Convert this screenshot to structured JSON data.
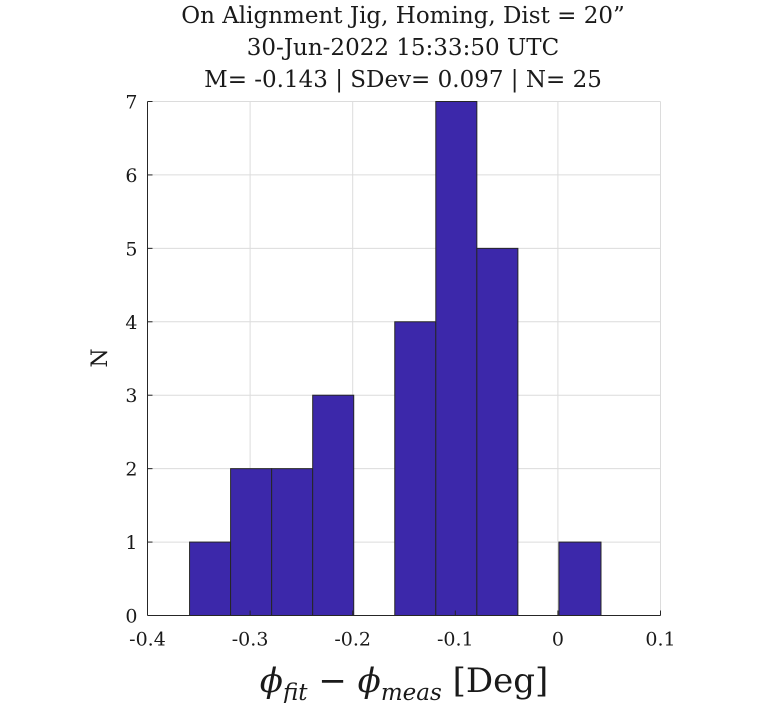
{
  "chart_data": {
    "type": "bar",
    "title_lines": [
      "On Alignment Jig, Homing, Dist = 20”",
      "30-Jun-2022 15:33:50 UTC",
      "M= -0.143 | SDev= 0.097 | N= 25"
    ],
    "xlabel": {
      "phi": "ϕ",
      "fit": "fit",
      "minus": " − ",
      "meas": "meas",
      "unit": " [Deg]"
    },
    "ylabel": "N",
    "xlim": [
      -0.4,
      0.1
    ],
    "ylim": [
      0,
      7
    ],
    "xticks": [
      "-0.4",
      "-0.3",
      "-0.2",
      "-0.1",
      "0",
      "0.1"
    ],
    "yticks": [
      "0",
      "1",
      "2",
      "3",
      "4",
      "5",
      "6",
      "7"
    ],
    "grid": true,
    "bin_edges": [
      -0.359,
      -0.319,
      -0.279,
      -0.239,
      -0.199,
      -0.159,
      -0.119,
      -0.079,
      -0.039,
      0.001,
      0.042
    ],
    "values": [
      1,
      2,
      2,
      3,
      0,
      4,
      7,
      5,
      0,
      1
    ],
    "bar_color": "#3c28aa"
  }
}
